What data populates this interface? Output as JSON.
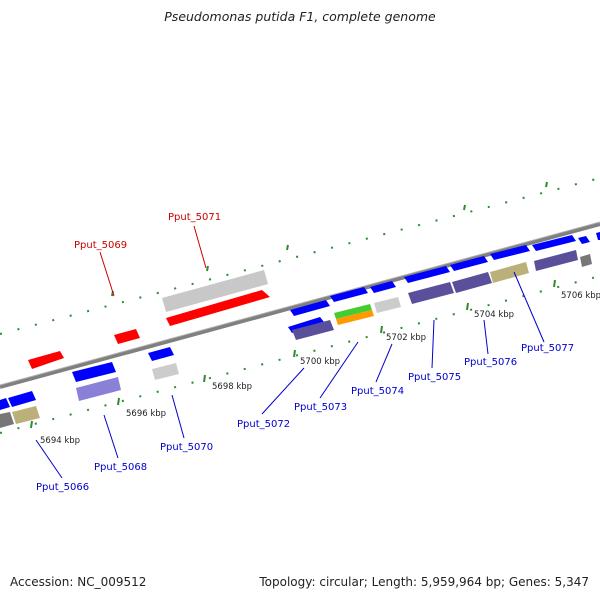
{
  "title": "Pseudomonas putida F1, complete genome",
  "footer": {
    "accession": "Accession: NC_009512",
    "summary": "Topology: circular; Length: 5,959,964 bp; Genes: 5,347"
  },
  "colors": {
    "backbone": "#808080",
    "tick": "#2e8b2e",
    "forward_gene": "#0000ff",
    "reverse_gene": "#ff0000",
    "pseudo_gene": "#c0c0c0",
    "cog_purple": "#5a4f9a",
    "cog_lightpurple": "#8b80d8",
    "cog_olive": "#bcb07a",
    "cog_green": "#44cc33",
    "cog_orange": "#ff9900",
    "cog_gray": "#777777",
    "label_blue": "#0000cc",
    "label_red": "#cc0000"
  },
  "scale_labels": [
    "5694 kbp",
    "5696 kbp",
    "5698 kbp",
    "5700 kbp",
    "5702 kbp",
    "5704 kbp",
    "5706 kbp"
  ],
  "gene_labels": [
    {
      "text": "Pput_5066",
      "color": "label_blue"
    },
    {
      "text": "Pput_5068",
      "color": "label_blue"
    },
    {
      "text": "Pput_5069",
      "color": "label_red"
    },
    {
      "text": "Pput_5070",
      "color": "label_blue"
    },
    {
      "text": "Pput_5071",
      "color": "label_red"
    },
    {
      "text": "Pput_5072",
      "color": "label_blue"
    },
    {
      "text": "Pput_5073",
      "color": "label_blue"
    },
    {
      "text": "Pput_5074",
      "color": "label_blue"
    },
    {
      "text": "Pput_5075",
      "color": "label_blue"
    },
    {
      "text": "Pput_5076",
      "color": "label_blue"
    },
    {
      "text": "Pput_5077",
      "color": "label_blue"
    }
  ]
}
